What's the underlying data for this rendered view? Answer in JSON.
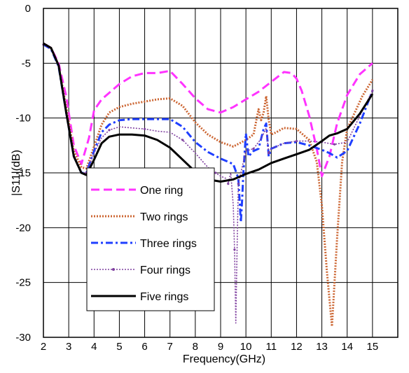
{
  "chart_data": {
    "type": "line",
    "title": "",
    "xlabel": "Frequency(GHz)",
    "ylabel": "|S11|(dB)",
    "xlim": [
      2,
      16
    ],
    "ylim": [
      -30,
      0
    ],
    "x_ticks": [
      "2",
      "3",
      "4",
      "5",
      "6",
      "7",
      "8",
      "9",
      "10",
      "11",
      "12",
      "13",
      "14",
      "15"
    ],
    "y_ticks": [
      "0",
      "-5",
      "-10",
      "-15",
      "-20",
      "-25",
      "-30"
    ],
    "grid": true,
    "legend_position": "lower-left",
    "series": [
      {
        "name": "One ring",
        "color": "#ff33ff",
        "style": "dashed",
        "x": [
          2.0,
          2.3,
          2.6,
          2.9,
          3.2,
          3.5,
          3.8,
          4.0,
          4.3,
          4.6,
          5.0,
          5.5,
          6.0,
          6.5,
          7.0,
          7.5,
          8.0,
          8.5,
          9.0,
          9.5,
          10.0,
          10.5,
          11.0,
          11.5,
          11.8,
          12.0,
          12.2,
          12.5,
          12.8,
          13.0,
          13.3,
          13.6,
          14.0,
          14.5,
          15.0
        ],
        "y": [
          -3.2,
          -3.6,
          -5.0,
          -8.0,
          -12.5,
          -14.2,
          -11.8,
          -9.3,
          -8.3,
          -7.7,
          -6.9,
          -6.2,
          -5.9,
          -5.9,
          -5.7,
          -6.9,
          -8.2,
          -9.2,
          -9.5,
          -9.0,
          -8.3,
          -7.6,
          -6.7,
          -5.8,
          -5.9,
          -6.4,
          -7.5,
          -9.8,
          -12.8,
          -15.3,
          -13.5,
          -10.5,
          -7.9,
          -6.0,
          -5.0
        ]
      },
      {
        "name": "Two rings",
        "color": "#cc6633",
        "style": "dotted",
        "x": [
          2.0,
          2.3,
          2.6,
          2.9,
          3.2,
          3.5,
          3.7,
          4.0,
          4.3,
          4.6,
          5.0,
          5.5,
          6.0,
          6.5,
          7.0,
          7.5,
          8.0,
          8.5,
          9.0,
          9.5,
          10.0,
          10.3,
          10.5,
          10.6,
          10.7,
          10.8,
          10.9,
          11.0,
          11.2,
          11.5,
          12.0,
          12.5,
          12.8,
          13.0,
          13.2,
          13.4,
          13.6,
          13.8,
          14.0,
          14.3,
          14.6,
          15.0
        ],
        "y": [
          -3.2,
          -3.6,
          -5.2,
          -9.0,
          -13.0,
          -14.5,
          -14.6,
          -12.6,
          -10.6,
          -9.5,
          -9.0,
          -8.7,
          -8.5,
          -8.3,
          -8.2,
          -8.9,
          -10.4,
          -11.5,
          -12.2,
          -12.6,
          -12.0,
          -11.5,
          -9.2,
          -10.2,
          -9.5,
          -8.0,
          -10.2,
          -11.5,
          -11.3,
          -10.9,
          -11.0,
          -12.0,
          -14.0,
          -18.0,
          -24.0,
          -29.0,
          -21.0,
          -14.0,
          -11.0,
          -9.5,
          -8.0,
          -6.5
        ]
      },
      {
        "name": "Three rings",
        "color": "#1f3fff",
        "style": "dashdot",
        "x": [
          2.0,
          2.3,
          2.6,
          2.9,
          3.2,
          3.5,
          3.7,
          4.0,
          4.3,
          4.6,
          5.0,
          5.5,
          6.0,
          6.5,
          7.0,
          7.5,
          8.0,
          8.5,
          9.0,
          9.3,
          9.5,
          9.7,
          9.8,
          9.85,
          9.9,
          10.0,
          10.1,
          10.3,
          10.5,
          10.7,
          10.8,
          10.9,
          11.0,
          11.5,
          12.0,
          12.5,
          13.0,
          13.3,
          13.6,
          14.0,
          14.5,
          15.0
        ],
        "y": [
          -3.3,
          -3.7,
          -5.3,
          -9.5,
          -13.5,
          -15.0,
          -15.0,
          -13.0,
          -11.3,
          -10.6,
          -10.2,
          -10.1,
          -10.1,
          -10.1,
          -10.1,
          -10.8,
          -12.2,
          -13.1,
          -13.7,
          -14.0,
          -14.2,
          -15.5,
          -19.5,
          -17.5,
          -15.0,
          -11.4,
          -13.5,
          -13.0,
          -12.8,
          -11.0,
          -10.5,
          -13.5,
          -12.8,
          -12.3,
          -12.2,
          -12.5,
          -12.9,
          -13.2,
          -13.6,
          -13.0,
          -10.5,
          -7.5
        ]
      },
      {
        "name": "Four rings",
        "color": "#7f3f9f",
        "style": "dotted-markers",
        "x": [
          2.0,
          2.3,
          2.6,
          2.9,
          3.2,
          3.5,
          3.7,
          4.0,
          4.3,
          4.6,
          5.0,
          5.5,
          6.0,
          6.5,
          7.0,
          7.5,
          8.0,
          8.5,
          8.8,
          9.0,
          9.2,
          9.3,
          9.4,
          9.5,
          9.55,
          9.6,
          9.65,
          9.7,
          9.8,
          10.0,
          10.3,
          10.6,
          10.8,
          10.9,
          11.0,
          11.5,
          12.0,
          12.5,
          13.0,
          13.5,
          14.0,
          14.5,
          15.0
        ],
        "y": [
          -3.3,
          -3.7,
          -5.3,
          -9.5,
          -13.5,
          -15.0,
          -15.0,
          -13.2,
          -11.8,
          -11.1,
          -10.8,
          -10.9,
          -11.0,
          -11.2,
          -11.3,
          -12.0,
          -13.2,
          -14.5,
          -15.0,
          -15.3,
          -15.5,
          -16.0,
          -15.0,
          -18.0,
          -22.0,
          -28.7,
          -22.0,
          -16.0,
          -15.0,
          -13.0,
          -12.8,
          -11.9,
          -10.9,
          -13.2,
          -12.8,
          -12.3,
          -12.1,
          -12.1,
          -12.2,
          -12.4,
          -12.2,
          -9.8,
          -7.5
        ]
      },
      {
        "name": "Five rings",
        "color": "#000000",
        "style": "solid",
        "x": [
          2.0,
          2.3,
          2.6,
          2.9,
          3.2,
          3.5,
          3.7,
          4.0,
          4.3,
          4.6,
          5.0,
          5.5,
          6.0,
          6.5,
          7.0,
          7.5,
          8.0,
          8.5,
          9.0,
          9.5,
          10.0,
          10.5,
          11.0,
          11.5,
          12.0,
          12.5,
          13.0,
          13.3,
          13.6,
          14.0,
          14.5,
          15.0
        ],
        "y": [
          -3.2,
          -3.6,
          -5.2,
          -9.5,
          -13.5,
          -15.0,
          -15.2,
          -13.8,
          -12.3,
          -11.7,
          -11.5,
          -11.5,
          -11.6,
          -12.0,
          -12.7,
          -13.8,
          -14.9,
          -15.6,
          -15.8,
          -15.6,
          -15.1,
          -14.7,
          -14.1,
          -13.7,
          -13.3,
          -12.9,
          -12.1,
          -11.6,
          -11.4,
          -11.0,
          -9.6,
          -7.8
        ]
      }
    ]
  }
}
